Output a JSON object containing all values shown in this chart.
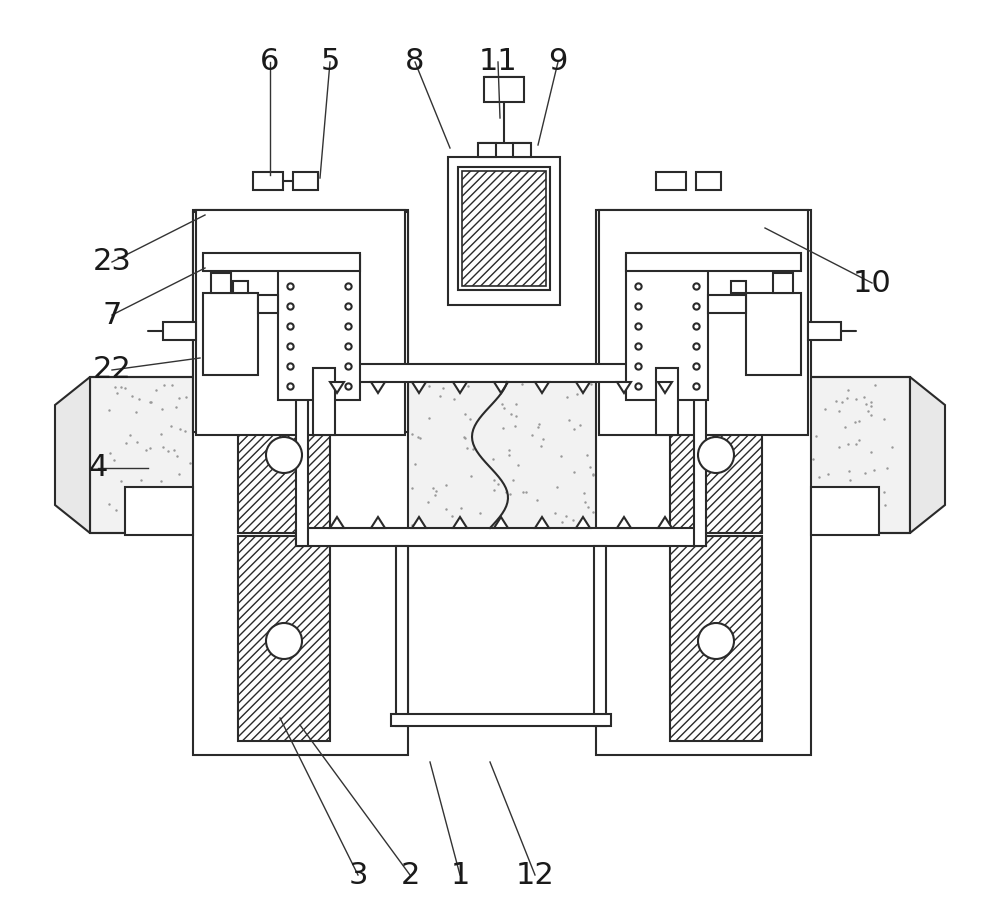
{
  "bg_color": "#ffffff",
  "lc": "#2a2a2a",
  "lw": 1.5,
  "figsize": [
    10.0,
    9.23
  ],
  "dpi": 100,
  "labels": [
    [
      "6",
      270,
      62,
      270,
      175
    ],
    [
      "5",
      330,
      62,
      320,
      178
    ],
    [
      "8",
      415,
      62,
      450,
      148
    ],
    [
      "11",
      498,
      62,
      500,
      118
    ],
    [
      "9",
      558,
      62,
      538,
      145
    ],
    [
      "10",
      872,
      283,
      765,
      228
    ],
    [
      "4",
      98,
      468,
      148,
      468
    ],
    [
      "23",
      112,
      262,
      205,
      215
    ],
    [
      "7",
      112,
      315,
      205,
      268
    ],
    [
      "22",
      112,
      370,
      200,
      358
    ],
    [
      "3",
      358,
      875,
      280,
      718
    ],
    [
      "2",
      410,
      875,
      300,
      725
    ],
    [
      "1",
      460,
      875,
      430,
      762
    ],
    [
      "12",
      535,
      875,
      490,
      762
    ]
  ]
}
